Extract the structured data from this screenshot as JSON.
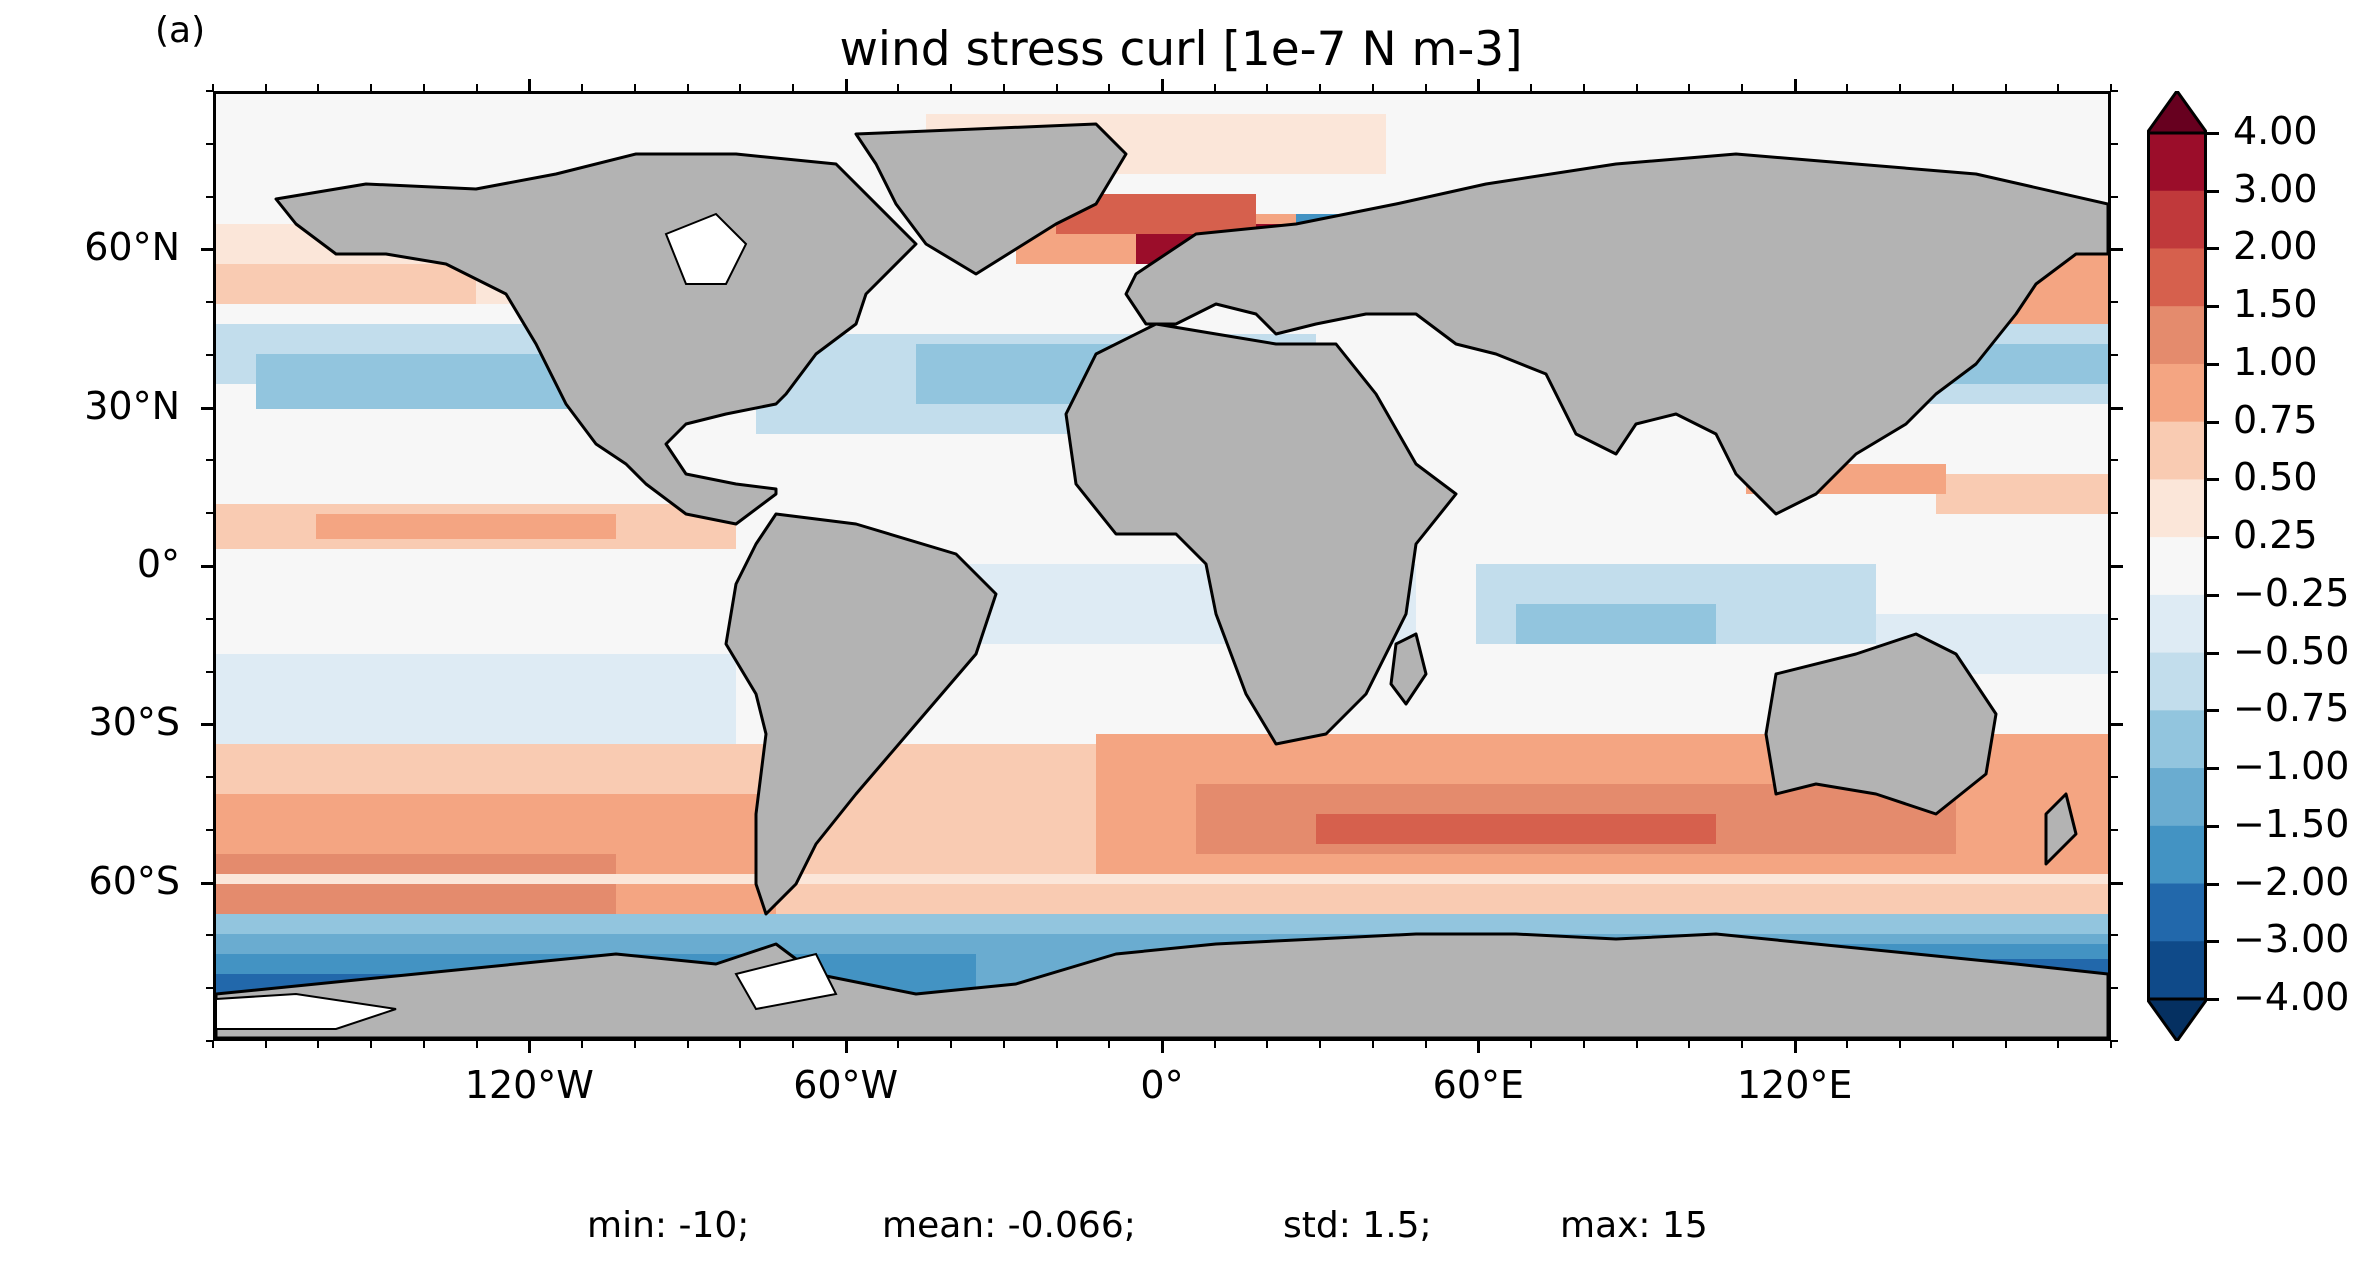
{
  "panel_label": "(a)",
  "title": "wind stress curl [1e-7 N m-3]",
  "map": {
    "projection": "PlateCarree",
    "lon_range": [
      -180,
      180
    ],
    "lat_range": [
      -90,
      90
    ],
    "land_color": "#b3b3b3",
    "coastline_color": "#000000",
    "lat_ticks": [
      "60°N",
      "30°N",
      "0°",
      "30°S",
      "60°S"
    ],
    "lon_ticks": [
      "120°W",
      "60°W",
      "0°",
      "60°E",
      "120°E"
    ]
  },
  "colorbar": {
    "colormap": "RdBu_r",
    "extend": "both",
    "labels": [
      "4.00",
      "3.00",
      "2.00",
      "1.50",
      "1.00",
      "0.75",
      "0.50",
      "0.25",
      "−0.25",
      "−0.50",
      "−0.75",
      "−1.00",
      "−1.50",
      "−2.00",
      "−3.00",
      "−4.00"
    ],
    "colors": [
      "#67001f",
      "#9b0d2a",
      "#c0393b",
      "#d6604d",
      "#e48b6d",
      "#f4a582",
      "#f9cbb2",
      "#fbe6d9",
      "#f7f7f7",
      "#deebf4",
      "#c2ddec",
      "#92c5de",
      "#6aacd0",
      "#4393c3",
      "#2268ab",
      "#0f4a89",
      "#053061"
    ]
  },
  "stats": {
    "min": "min: -10;",
    "mean": "mean: -0.066;",
    "std": "std: 1.5;",
    "max": "max: 15"
  }
}
